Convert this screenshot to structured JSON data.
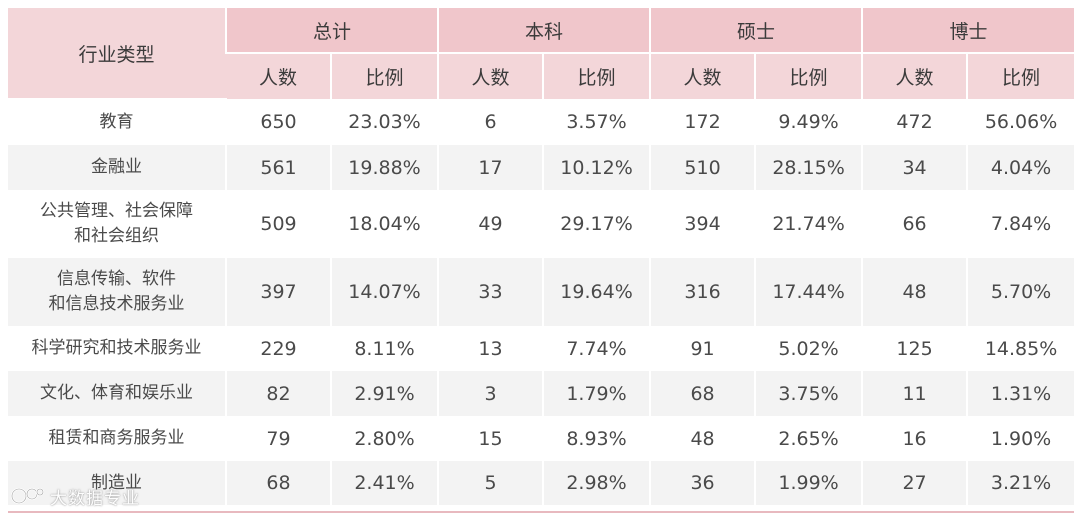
{
  "header": {
    "industry_label": "行业类型",
    "groups": [
      "总计",
      "本科",
      "硕士",
      "博士"
    ],
    "count_label": "人数",
    "ratio_label": "比例"
  },
  "rows": [
    {
      "industry": [
        "教育"
      ],
      "values": [
        "650",
        "23.03%",
        "6",
        "3.57%",
        "172",
        "9.49%",
        "472",
        "56.06%"
      ]
    },
    {
      "industry": [
        "金融业"
      ],
      "values": [
        "561",
        "19.88%",
        "17",
        "10.12%",
        "510",
        "28.15%",
        "34",
        "4.04%"
      ]
    },
    {
      "industry": [
        "公共管理、社会保障",
        "和社会组织"
      ],
      "values": [
        "509",
        "18.04%",
        "49",
        "29.17%",
        "394",
        "21.74%",
        "66",
        "7.84%"
      ]
    },
    {
      "industry": [
        "信息传输、软件",
        "和信息技术服务业"
      ],
      "values": [
        "397",
        "14.07%",
        "33",
        "19.64%",
        "316",
        "17.44%",
        "48",
        "5.70%"
      ]
    },
    {
      "industry": [
        "科学研究和技术服务业"
      ],
      "values": [
        "229",
        "8.11%",
        "13",
        "7.74%",
        "91",
        "5.02%",
        "125",
        "14.85%"
      ]
    },
    {
      "industry": [
        "文化、体育和娱乐业"
      ],
      "values": [
        "82",
        "2.91%",
        "3",
        "1.79%",
        "68",
        "3.75%",
        "11",
        "1.31%"
      ]
    },
    {
      "industry": [
        "租赁和商务服务业"
      ],
      "values": [
        "79",
        "2.80%",
        "15",
        "8.93%",
        "48",
        "2.65%",
        "16",
        "1.90%"
      ]
    },
    {
      "industry": [
        "制造业"
      ],
      "values": [
        "68",
        "2.41%",
        "5",
        "2.98%",
        "36",
        "1.99%",
        "27",
        "3.21%"
      ]
    }
  ],
  "watermark": {
    "text": "大数据专业"
  },
  "colors": {
    "header_group": "#f0c6cb",
    "header_sub": "#f3d6d9",
    "stripe": "#f3f3f3",
    "rule": "#e8b9bf"
  }
}
